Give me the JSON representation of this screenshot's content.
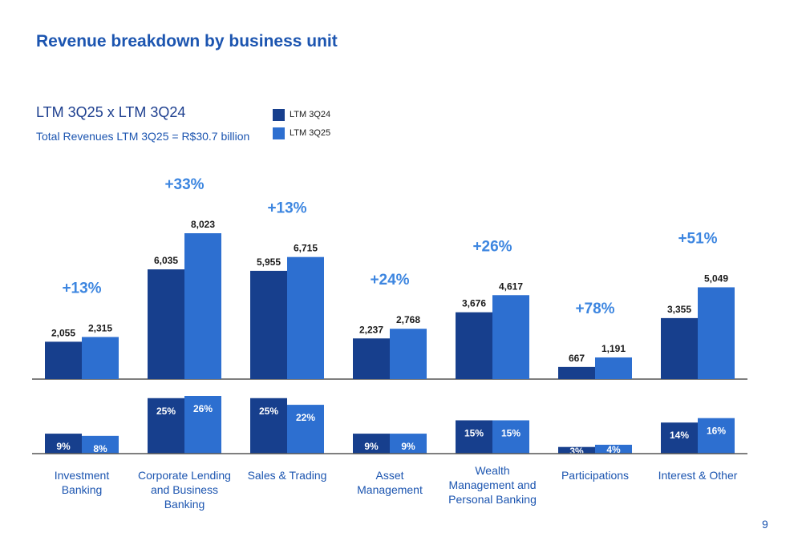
{
  "title": "Revenue breakdown by business unit",
  "subtitle": "LTM 3Q25 x LTM 3Q24",
  "total_note": "Total Revenues LTM 3Q25 = R$30.7 billion",
  "page_number": "9",
  "colors": {
    "ltm_3q24": "#173f8d",
    "ltm_3q25": "#2d6fd0",
    "title": "#1c55b0",
    "growth_label": "#3d86e0"
  },
  "chart_data": [
    {
      "type": "bar",
      "categories": [
        "Investment Banking",
        "Corporate Lending and Business Banking",
        "Sales & Trading",
        "Asset Management",
        "Wealth Management and Personal Banking",
        "Participations",
        "Interest & Other"
      ],
      "series": [
        {
          "name": "LTM 3Q24",
          "values": [
            2055,
            6035,
            5955,
            2237,
            3676,
            667,
            3355
          ],
          "labels": [
            "2,055",
            "6,035",
            "5,955",
            "2,237",
            "3,676",
            "667",
            "3,355"
          ]
        },
        {
          "name": "LTM 3Q25",
          "values": [
            2315,
            8023,
            6715,
            2768,
            4617,
            1191,
            5049
          ],
          "labels": [
            "2,315",
            "8,023",
            "6,715",
            "2,768",
            "4,617",
            "1,191",
            "5,049"
          ]
        }
      ],
      "growth_labels": [
        "+13%",
        "+33%",
        "+13%",
        "+24%",
        "+26%",
        "+78%",
        "+51%"
      ],
      "legend": [
        "LTM 3Q24",
        "LTM 3Q25"
      ],
      "legend_position": "top-center",
      "grid": false
    },
    {
      "type": "bar",
      "categories": [
        "Investment Banking",
        "Corporate Lending and Business Banking",
        "Sales & Trading",
        "Asset Management",
        "Wealth Management and Personal Banking",
        "Participations",
        "Interest & Other"
      ],
      "series": [
        {
          "name": "LTM 3Q24",
          "values": [
            9,
            25,
            25,
            9,
            15,
            3,
            14
          ],
          "labels": [
            "9%",
            "25%",
            "25%",
            "9%",
            "15%",
            "3%",
            "14%"
          ]
        },
        {
          "name": "LTM 3Q25",
          "values": [
            8,
            26,
            22,
            9,
            15,
            4,
            16
          ],
          "labels": [
            "8%",
            "26%",
            "22%",
            "9%",
            "15%",
            "4%",
            "16%"
          ]
        }
      ],
      "grid": false
    }
  ],
  "category_labels": [
    [
      "Investment",
      "Banking"
    ],
    [
      "Corporate Lending",
      "and Business",
      "Banking"
    ],
    [
      "Sales & Trading"
    ],
    [
      "Asset",
      "Management"
    ],
    [
      "Wealth",
      "Management and",
      "Personal Banking"
    ],
    [
      "Participations"
    ],
    [
      "Interest & Other"
    ]
  ]
}
